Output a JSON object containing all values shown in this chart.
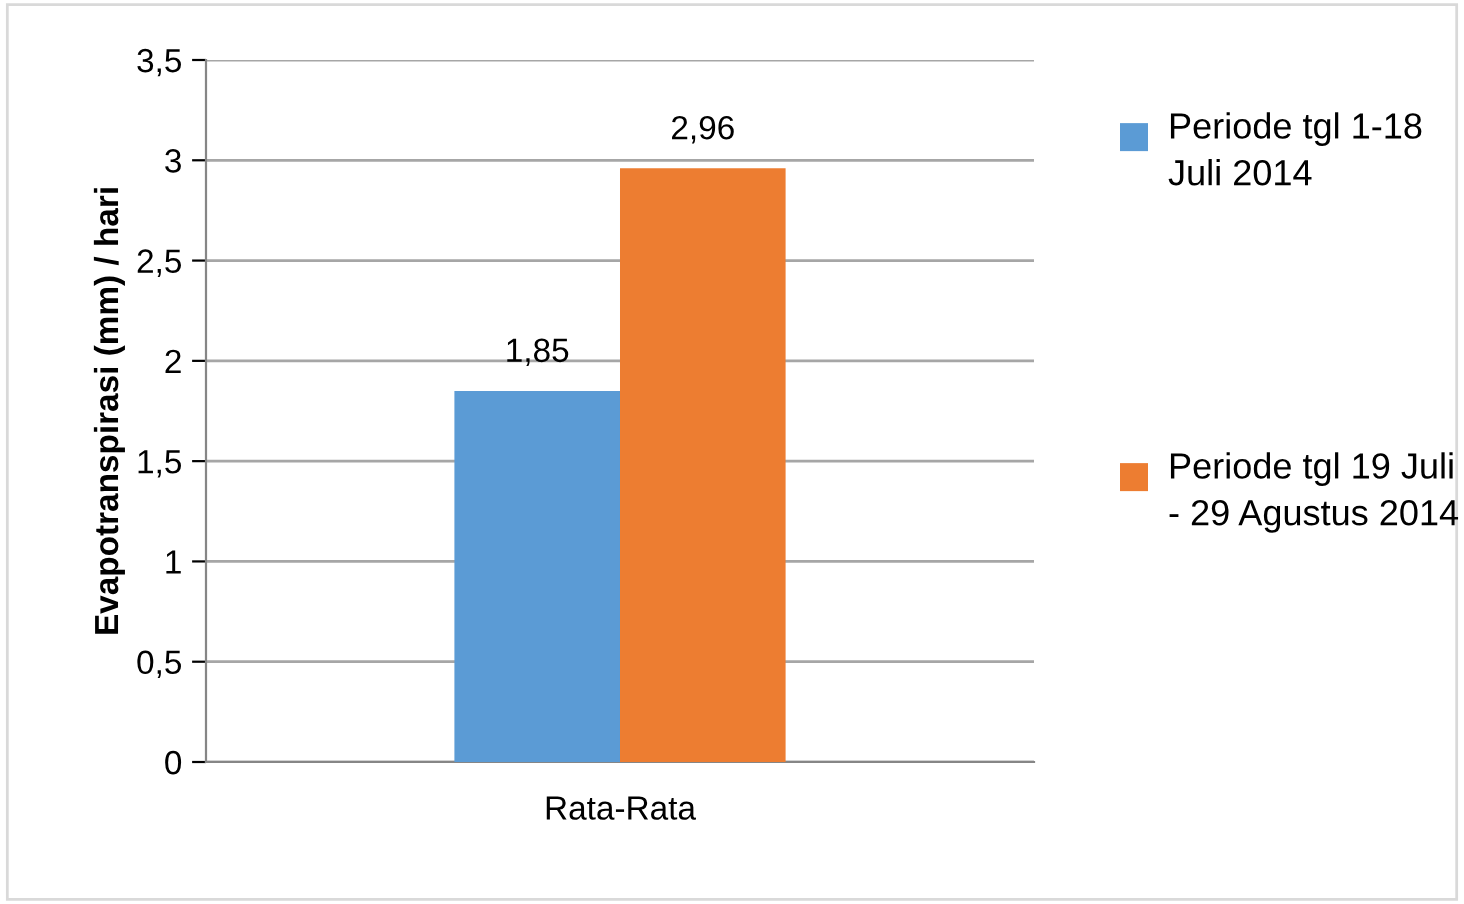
{
  "chart_data": {
    "type": "bar",
    "ylabel": "Evapotranspirasi (mm) / hari",
    "categories": [
      "Rata-Rata"
    ],
    "series": [
      {
        "name": "Periode tgl 1-18 Juli 2014",
        "color": "#5b9bd5",
        "values": [
          1.85
        ]
      },
      {
        "name": "Periode tgl 19 Juli - 29 Agustus 2014",
        "color": "#ed7d31",
        "values": [
          2.96
        ]
      }
    ],
    "ylim": [
      0,
      3.5
    ],
    "yticks": [
      {
        "value": 0,
        "label": "0"
      },
      {
        "value": 0.5,
        "label": "0,5"
      },
      {
        "value": 1,
        "label": "1"
      },
      {
        "value": 1.5,
        "label": "1,5"
      },
      {
        "value": 2,
        "label": "2"
      },
      {
        "value": 2.5,
        "label": "2,5"
      },
      {
        "value": 3,
        "label": "3"
      },
      {
        "value": 3.5,
        "label": "3,5"
      }
    ],
    "value_labels": [
      [
        "1,85"
      ],
      [
        "2,96"
      ]
    ],
    "grid": "y",
    "legend": "right"
  }
}
